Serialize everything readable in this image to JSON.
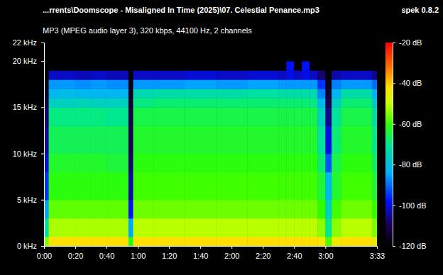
{
  "chart_data": {
    "type": "heatmap",
    "title": "...rrents\\Doomscope - Misaligned In Time (2025)\\07. Celestial Penance.mp3",
    "subtitle": "MP3 (MPEG audio layer 3), 320 kbps, 44100 Hz, 2 channels",
    "annotations": [
      "spek 0.8.2"
    ],
    "xlim": [
      0,
      213
    ],
    "xticks": [
      {
        "value": 0,
        "label": "0:00"
      },
      {
        "value": 20,
        "label": "0:20"
      },
      {
        "value": 40,
        "label": "0:40"
      },
      {
        "value": 60,
        "label": "1:00"
      },
      {
        "value": 80,
        "label": "1:20"
      },
      {
        "value": 100,
        "label": "1:40"
      },
      {
        "value": 120,
        "label": "2:00"
      },
      {
        "value": 140,
        "label": "2:20"
      },
      {
        "value": 160,
        "label": "2:40"
      },
      {
        "value": 180,
        "label": "3:00"
      },
      {
        "value": 213,
        "label": "3:33"
      }
    ],
    "ylim": [
      0,
      22
    ],
    "yticks": [
      {
        "value": 0,
        "label": "0 kHz"
      },
      {
        "value": 5,
        "label": "5 kHz"
      },
      {
        "value": 10,
        "label": "10 kHz"
      },
      {
        "value": 15,
        "label": "15 kHz"
      },
      {
        "value": 20,
        "label": "20 kHz"
      },
      {
        "value": 22,
        "label": "22 kHz"
      }
    ],
    "x_edges": [
      0,
      3,
      10,
      20,
      30,
      40,
      54,
      57,
      70,
      90,
      110,
      130,
      150,
      155,
      160,
      165,
      170,
      175,
      180,
      184,
      190,
      210,
      213
    ],
    "y_edges": [
      0,
      1,
      3,
      5,
      8,
      10,
      13,
      15,
      16,
      17,
      18,
      19,
      20,
      21,
      22
    ],
    "cells": [
      [
        -55,
        -72,
        -85,
        -95,
        -100,
        -105,
        -108,
        -112,
        -115,
        -118,
        -120,
        -120,
        -120,
        -120
      ],
      [
        -42,
        -52,
        -57,
        -61,
        -63,
        -66,
        -69,
        -76,
        -82,
        -86,
        -102,
        -120,
        -120,
        -120
      ],
      [
        -42,
        -52,
        -57,
        -61,
        -63,
        -66,
        -69,
        -76,
        -81,
        -86,
        -102,
        -120,
        -120,
        -120
      ],
      [
        -42,
        -52,
        -57,
        -61,
        -63,
        -66,
        -69,
        -75,
        -82,
        -87,
        -103,
        -120,
        -120,
        -120
      ],
      [
        -42,
        -52,
        -57,
        -61,
        -63,
        -66,
        -69,
        -76,
        -82,
        -86,
        -102,
        -120,
        -120,
        -120
      ],
      [
        -42,
        -52,
        -57,
        -61,
        -64,
        -66,
        -70,
        -76,
        -82,
        -87,
        -103,
        -120,
        -120,
        -120
      ],
      [
        -62,
        -85,
        -98,
        -104,
        -108,
        -110,
        -112,
        -114,
        -116,
        -118,
        -120,
        -120,
        -120,
        -120
      ],
      [
        -42,
        -51,
        -56,
        -59,
        -61,
        -63,
        -65,
        -69,
        -74,
        -86,
        -102,
        -120,
        -120,
        -120
      ],
      [
        -42,
        -51,
        -56,
        -59,
        -61,
        -63,
        -65,
        -68,
        -73,
        -86,
        -102,
        -120,
        -120,
        -120
      ],
      [
        -42,
        -51,
        -56,
        -59,
        -61,
        -63,
        -65,
        -68,
        -73,
        -85,
        -101,
        -120,
        -120,
        -120
      ],
      [
        -42,
        -51,
        -56,
        -59,
        -61,
        -63,
        -65,
        -68,
        -73,
        -86,
        -102,
        -120,
        -120,
        -120
      ],
      [
        -42,
        -51,
        -56,
        -59,
        -61,
        -63,
        -65,
        -68,
        -72,
        -85,
        -101,
        -120,
        -120,
        -120
      ],
      [
        -42,
        -51,
        -56,
        -59,
        -61,
        -63,
        -65,
        -68,
        -73,
        -86,
        -102,
        -120,
        -120,
        -120
      ],
      [
        -42,
        -51,
        -56,
        -59,
        -61,
        -63,
        -65,
        -68,
        -73,
        -86,
        -100,
        -98,
        -120,
        -120
      ],
      [
        -42,
        -51,
        -56,
        -59,
        -61,
        -63,
        -65,
        -68,
        -73,
        -86,
        -102,
        -120,
        -120,
        -120
      ],
      [
        -42,
        -51,
        -56,
        -59,
        -61,
        -63,
        -65,
        -68,
        -73,
        -86,
        -100,
        -98,
        -120,
        -120
      ],
      [
        -42,
        -51,
        -56,
        -59,
        -61,
        -63,
        -65,
        -69,
        -74,
        -86,
        -102,
        -120,
        -120,
        -120
      ],
      [
        -44,
        -54,
        -60,
        -64,
        -68,
        -72,
        -76,
        -82,
        -88,
        -95,
        -108,
        -120,
        -120,
        -120
      ],
      [
        -58,
        -70,
        -76,
        -82,
        -92,
        -100,
        -106,
        -110,
        -114,
        -117,
        -120,
        -120,
        -120,
        -120
      ],
      [
        -44,
        -54,
        -59,
        -63,
        -65,
        -68,
        -71,
        -76,
        -82,
        -88,
        -104,
        -120,
        -120,
        -120
      ],
      [
        -42,
        -51,
        -56,
        -59,
        -61,
        -63,
        -65,
        -68,
        -73,
        -86,
        -102,
        -120,
        -120,
        -120
      ],
      [
        -45,
        -55,
        -60,
        -64,
        -67,
        -70,
        -73,
        -78,
        -84,
        -90,
        -106,
        -120,
        -120,
        -120
      ]
    ],
    "colorbar": {
      "range": [
        -120,
        -20
      ],
      "ticks": [
        {
          "value": -20,
          "label": "-20 dB"
        },
        {
          "value": -40,
          "label": "-40 dB"
        },
        {
          "value": -60,
          "label": "-60 dB"
        },
        {
          "value": -80,
          "label": "-80 dB"
        },
        {
          "value": -100,
          "label": "-100 dB"
        },
        {
          "value": -120,
          "label": "-120 dB"
        }
      ]
    }
  }
}
